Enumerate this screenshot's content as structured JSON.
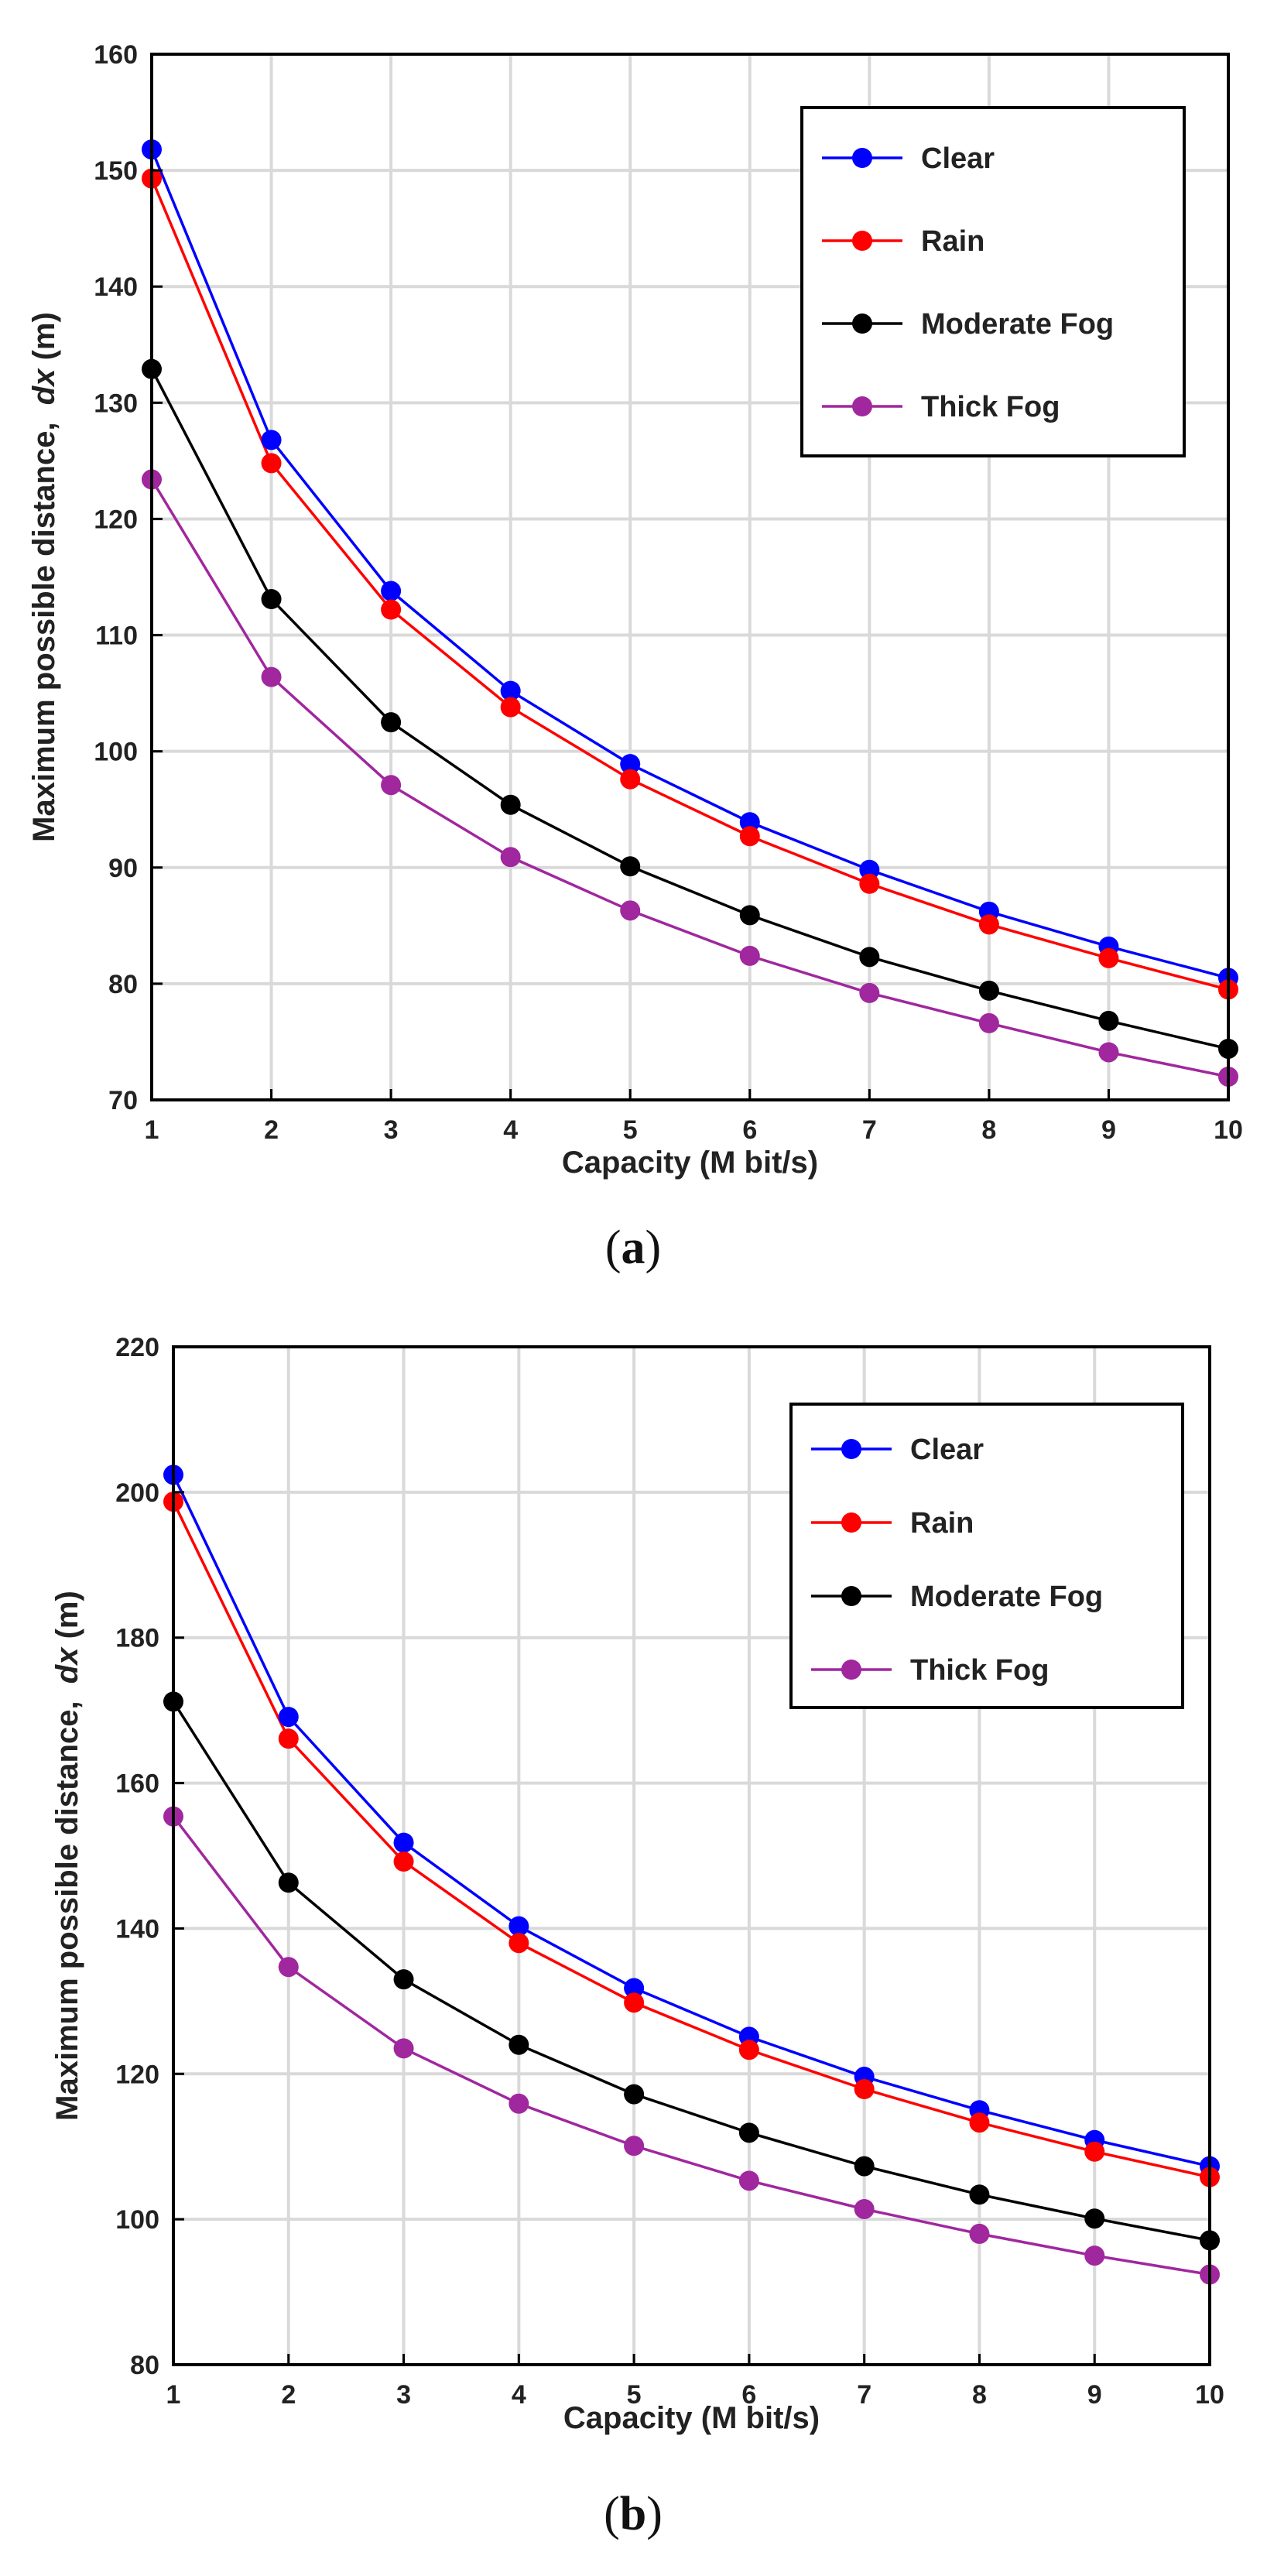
{
  "chart_data": [
    {
      "type": "line",
      "caption_letter": "a",
      "xlabel": "Capacity (M bit/s)",
      "ylabel_prefix": "Maximum possible distance,",
      "ylabel_var": "dx",
      "ylabel_unit": "(m)",
      "x": [
        1,
        2,
        3,
        4,
        5,
        6,
        7,
        8,
        9,
        10
      ],
      "xlim": [
        1,
        10
      ],
      "ylim": [
        70,
        160
      ],
      "yticks": [
        70,
        80,
        90,
        100,
        110,
        120,
        130,
        140,
        150,
        160
      ],
      "grid": true,
      "legend_position": "top-right",
      "series": [
        {
          "name": "Clear",
          "color": "#0000ff",
          "values": [
            151.8,
            126.8,
            113.8,
            105.2,
            98.9,
            93.9,
            89.8,
            86.2,
            83.2,
            80.5
          ]
        },
        {
          "name": "Rain",
          "color": "#ff0000",
          "values": [
            149.3,
            124.8,
            112.2,
            103.8,
            97.6,
            92.7,
            88.6,
            85.1,
            82.2,
            79.5
          ]
        },
        {
          "name": "Moderate Fog",
          "color": "#000000",
          "values": [
            132.9,
            113.1,
            102.5,
            95.4,
            90.1,
            85.9,
            82.3,
            79.4,
            76.8,
            74.4
          ]
        },
        {
          "name": "Thick Fog",
          "color": "#a0279e",
          "values": [
            123.4,
            106.4,
            97.1,
            90.9,
            86.3,
            82.4,
            79.2,
            76.6,
            74.1,
            72.0
          ]
        }
      ]
    },
    {
      "type": "line",
      "caption_letter": "b",
      "xlabel": "Capacity (M bit/s)",
      "ylabel_prefix": "Maximum possible distance,",
      "ylabel_var": "dx",
      "ylabel_unit": "(m)",
      "x": [
        1,
        2,
        3,
        4,
        5,
        6,
        7,
        8,
        9,
        10
      ],
      "xlim": [
        1,
        10
      ],
      "ylim": [
        80,
        220
      ],
      "yticks": [
        80,
        100,
        120,
        140,
        160,
        180,
        200,
        220
      ],
      "grid": true,
      "legend_position": "top-right",
      "series": [
        {
          "name": "Clear",
          "color": "#0000ff",
          "values": [
            202.4,
            169.1,
            151.8,
            140.3,
            131.8,
            125.1,
            119.6,
            115.0,
            110.9,
            107.3
          ]
        },
        {
          "name": "Rain",
          "color": "#ff0000",
          "values": [
            198.7,
            166.1,
            149.2,
            138.0,
            129.8,
            123.3,
            117.9,
            113.3,
            109.3,
            105.8
          ]
        },
        {
          "name": "Moderate Fog",
          "color": "#000000",
          "values": [
            171.2,
            146.3,
            133.0,
            124.0,
            117.2,
            111.9,
            107.3,
            103.4,
            100.1,
            97.1
          ]
        },
        {
          "name": "Thick Fog",
          "color": "#a0279e",
          "values": [
            155.4,
            134.7,
            123.5,
            115.9,
            110.1,
            105.3,
            101.4,
            98.0,
            95.0,
            92.4
          ]
        }
      ]
    }
  ]
}
